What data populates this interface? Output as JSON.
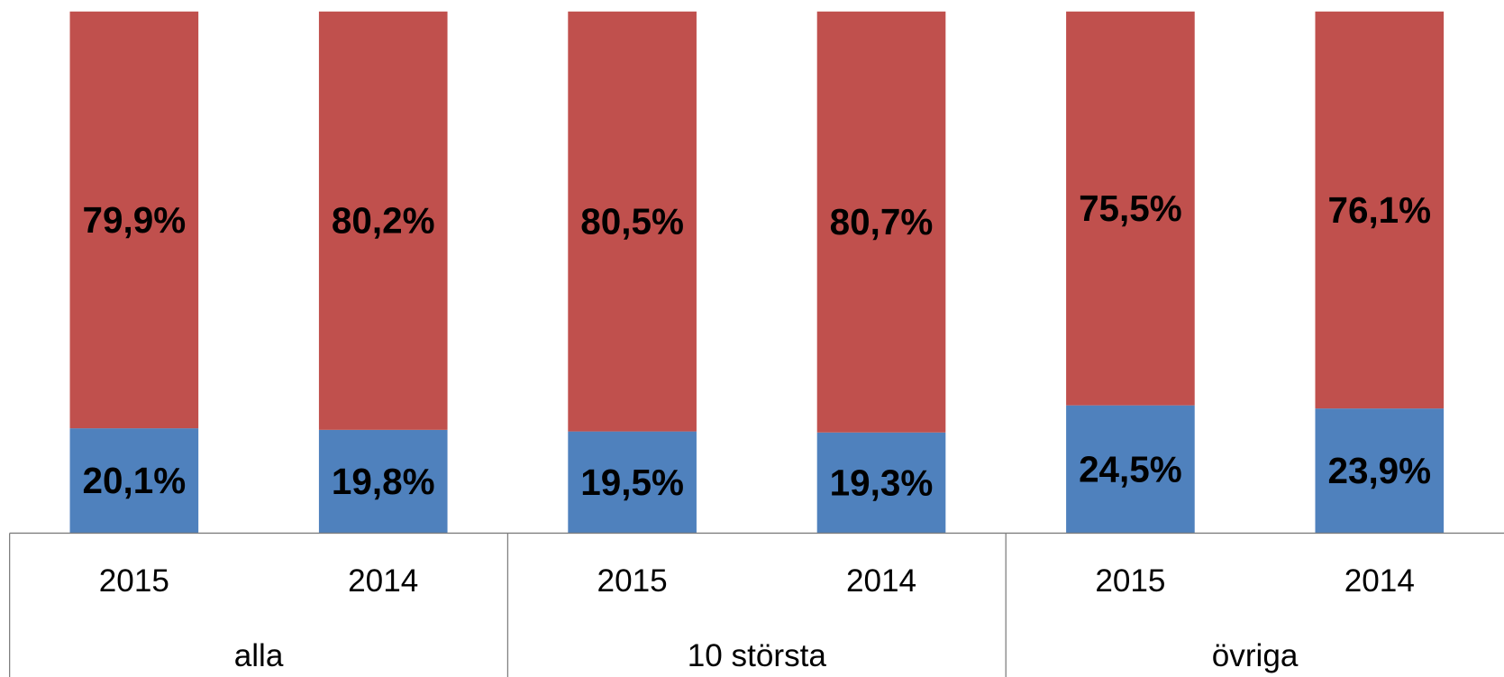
{
  "chart_data": {
    "type": "stacked_bar",
    "categories": [
      "2015",
      "2014",
      "2015",
      "2014",
      "2015",
      "2014"
    ],
    "groups": [
      "alla",
      "10 största",
      "övriga"
    ],
    "ylim": [
      0,
      100
    ],
    "series": [
      {
        "color": "#4f81bd",
        "values": [
          20.1,
          19.8,
          19.5,
          19.3,
          24.5,
          23.9
        ],
        "value_labels": [
          "20,1%",
          "19,8%",
          "19,5%",
          "19,3%",
          "24,5%",
          "23,9%"
        ]
      },
      {
        "color": "#c0504d",
        "values": [
          79.9,
          80.2,
          80.5,
          80.7,
          75.5,
          76.1
        ],
        "value_labels": [
          "79,9%",
          "80,2%",
          "80,5%",
          "80,7%",
          "75,5%",
          "76,1%"
        ]
      }
    ]
  }
}
